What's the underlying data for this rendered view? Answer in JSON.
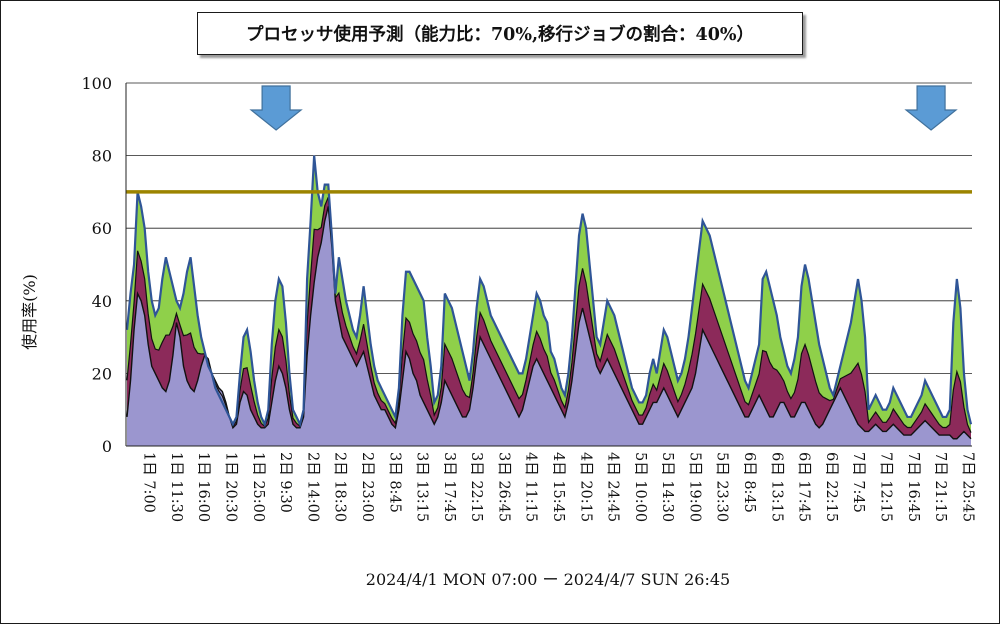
{
  "chart_data": {
    "type": "area",
    "title": "プロセッサ使用予測（能力比：70%,移行ジョブの割合：40%）",
    "xlabel": "2024/4/1 MON 07:00 ー 2024/4/7 SUN 26:45",
    "ylabel": "使用率(%)",
    "ylim": [
      0,
      100
    ],
    "yticks": [
      0,
      20,
      40,
      60,
      80,
      100
    ],
    "grid": true,
    "capacity_line": {
      "value": 70,
      "color": "#9c8400"
    },
    "x_tick_labels": [
      "1日 7:00",
      "1日 11:30",
      "1日 16:00",
      "1日 20:30",
      "1日 25:00",
      "2日 9:30",
      "2日 14:00",
      "2日 18:30",
      "2日 23:00",
      "3日 8:45",
      "3日 13:15",
      "3日 17:45",
      "3日 22:15",
      "3日 26:45",
      "4日 11:15",
      "4日 15:45",
      "4日 20:15",
      "4日 24:45",
      "5日 10:00",
      "5日 14:30",
      "5日 19:00",
      "5日 23:30",
      "6日 8:45",
      "6日 13:15",
      "6日 17:45",
      "6日 22:15",
      "7日 7:45",
      "7日 12:15",
      "7日 16:45",
      "7日 21:15",
      "7日 25:45"
    ],
    "series_style": {
      "base": "#9b96cf",
      "migrated": "#8c2a5a",
      "remaining": "#8fd04a",
      "total_line": "#2f5597"
    },
    "peaks_marked": [
      "2日 9:30",
      "7日 21:15"
    ],
    "series": [
      {
        "values": [
          [
            8,
            18,
            32,
            42,
            40,
            36,
            28,
            22,
            20,
            18,
            16,
            15,
            18,
            25,
            34,
            30,
            22,
            18,
            16,
            15,
            18,
            22,
            25,
            24,
            20,
            18,
            16,
            15,
            12,
            8
          ],
          [
            5,
            6,
            12,
            15,
            14,
            10,
            8,
            6,
            5,
            5,
            6,
            12,
            18,
            22,
            20,
            16,
            10,
            6,
            5,
            5,
            8,
            25,
            36,
            45,
            52,
            56,
            62,
            66,
            55,
            40
          ],
          [
            35,
            30,
            28,
            26,
            24,
            22,
            24,
            26,
            22,
            18,
            14,
            12,
            10,
            10,
            8,
            6,
            5,
            10,
            18,
            26,
            24,
            20,
            18,
            14,
            12,
            10,
            8,
            6,
            8,
            12
          ],
          [
            18,
            16,
            14,
            12,
            10,
            8,
            8,
            10,
            16,
            24,
            30,
            28,
            26,
            24,
            22,
            20,
            18,
            16,
            14,
            12,
            10,
            8,
            10,
            14,
            18,
            22,
            24,
            22,
            20,
            18
          ],
          [
            16,
            14,
            12,
            10,
            8,
            12,
            18,
            26,
            34,
            38,
            34,
            30,
            26,
            22,
            20,
            22,
            24,
            22,
            20,
            18,
            16,
            14,
            12,
            10,
            8,
            6,
            6,
            8,
            10,
            12
          ],
          [
            12,
            14,
            16,
            14,
            12,
            10,
            8,
            10,
            12,
            14,
            16,
            20,
            26,
            32,
            30,
            28,
            26,
            24,
            22,
            20,
            18,
            16,
            14,
            12,
            10,
            8,
            8,
            10,
            12,
            14
          ],
          [
            12,
            10,
            8,
            8,
            10,
            12,
            12,
            10,
            8,
            8,
            10,
            12,
            12,
            10,
            8,
            6,
            5,
            6,
            8,
            10,
            12,
            14,
            16,
            14,
            12,
            10,
            8,
            6,
            5,
            4
          ],
          [
            4,
            5,
            6,
            5,
            4,
            4,
            5,
            6,
            5,
            4,
            3,
            3,
            3,
            4,
            5,
            6,
            7,
            6,
            5,
            4,
            3,
            3,
            3,
            3,
            2,
            2,
            3,
            4,
            3,
            2
          ]
        ]
      },
      {
        "values": [
          [
            32,
            42,
            50,
            70,
            66,
            60,
            48,
            40,
            36,
            38,
            46,
            52,
            48,
            44,
            40,
            38,
            42,
            48,
            52,
            44,
            36,
            30,
            26,
            22,
            20,
            16,
            14,
            12,
            10,
            8
          ],
          [
            6,
            8,
            20,
            30,
            32,
            26,
            18,
            12,
            8,
            6,
            10,
            28,
            40,
            46,
            44,
            34,
            20,
            10,
            8,
            6,
            10,
            46,
            62,
            80,
            70,
            66,
            72,
            72,
            58,
            42
          ],
          [
            52,
            46,
            40,
            36,
            32,
            30,
            36,
            44,
            36,
            28,
            22,
            18,
            16,
            14,
            12,
            10,
            8,
            16,
            36,
            48,
            48,
            46,
            44,
            42,
            40,
            30,
            22,
            12,
            14,
            22
          ],
          [
            42,
            40,
            38,
            34,
            30,
            26,
            22,
            18,
            26,
            38,
            46,
            44,
            40,
            36,
            34,
            32,
            30,
            28,
            26,
            24,
            22,
            20,
            20,
            24,
            30,
            36,
            42,
            40,
            36,
            34
          ],
          [
            26,
            24,
            20,
            16,
            14,
            20,
            30,
            44,
            58,
            64,
            60,
            50,
            40,
            30,
            28,
            34,
            40,
            38,
            36,
            32,
            28,
            24,
            20,
            16,
            14,
            12,
            12,
            14,
            20,
            24
          ],
          [
            20,
            26,
            32,
            30,
            26,
            22,
            18,
            20,
            24,
            30,
            38,
            46,
            54,
            62,
            60,
            58,
            54,
            50,
            46,
            42,
            38,
            34,
            30,
            26,
            22,
            18,
            16,
            20,
            24,
            28
          ],
          [
            46,
            48,
            44,
            40,
            36,
            30,
            26,
            22,
            20,
            24,
            30,
            44,
            50,
            46,
            40,
            34,
            28,
            24,
            20,
            16,
            14,
            18,
            22,
            26,
            30,
            34,
            40,
            46,
            40,
            30
          ],
          [
            10,
            12,
            14,
            12,
            10,
            10,
            12,
            16,
            14,
            12,
            10,
            8,
            8,
            10,
            12,
            14,
            18,
            16,
            14,
            12,
            10,
            8,
            8,
            10,
            34,
            46,
            38,
            20,
            10,
            6
          ]
        ]
      }
    ]
  }
}
